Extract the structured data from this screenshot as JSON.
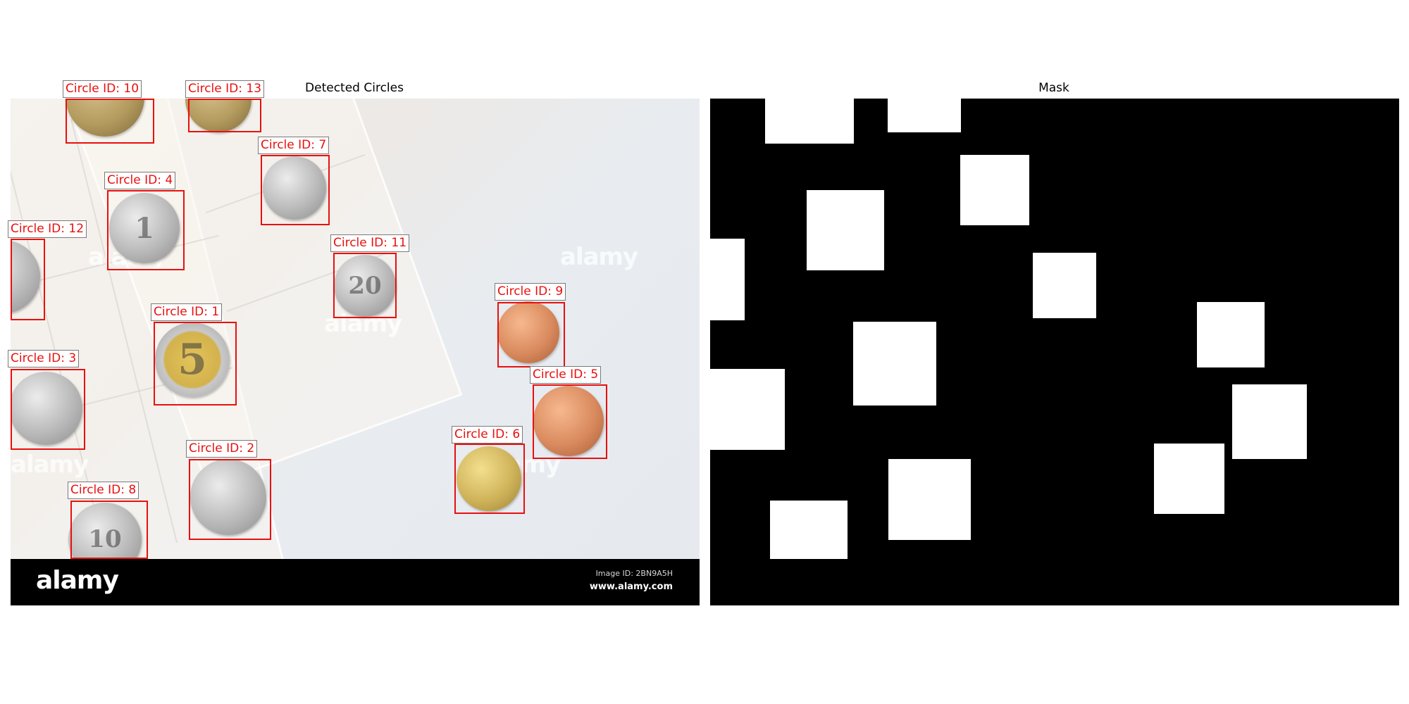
{
  "left_title": "Detected Circles",
  "right_title": "Mask",
  "footer": {
    "brand": "alamy",
    "image_id": "Image ID: 2BN9A5H",
    "url": "www.alamy.com"
  },
  "watermark_text": "alamy",
  "coin_glyphs": {
    "c1": "5",
    "c2": "",
    "c3": "",
    "c4": "1",
    "c5": "",
    "c6": "",
    "c7": "",
    "c8": "10",
    "c9": "",
    "c10": "",
    "c11": "20",
    "c12": "",
    "c13": ""
  },
  "detections": [
    {
      "id": 1,
      "label": "Circle ID: 1"
    },
    {
      "id": 2,
      "label": "Circle ID: 2"
    },
    {
      "id": 3,
      "label": "Circle ID: 3"
    },
    {
      "id": 4,
      "label": "Circle ID: 4"
    },
    {
      "id": 5,
      "label": "Circle ID: 5"
    },
    {
      "id": 6,
      "label": "Circle ID: 6"
    },
    {
      "id": 7,
      "label": "Circle ID: 7"
    },
    {
      "id": 8,
      "label": "Circle ID: 8"
    },
    {
      "id": 9,
      "label": "Circle ID: 9"
    },
    {
      "id": 10,
      "label": "Circle ID: 10"
    },
    {
      "id": 11,
      "label": "Circle ID: 11"
    },
    {
      "id": 12,
      "label": "Circle ID: 12"
    },
    {
      "id": 13,
      "label": "Circle ID: 13"
    }
  ],
  "colors": {
    "bbox": "#e8100e",
    "mask_background": "#000000",
    "mask_region": "#ffffff"
  }
}
